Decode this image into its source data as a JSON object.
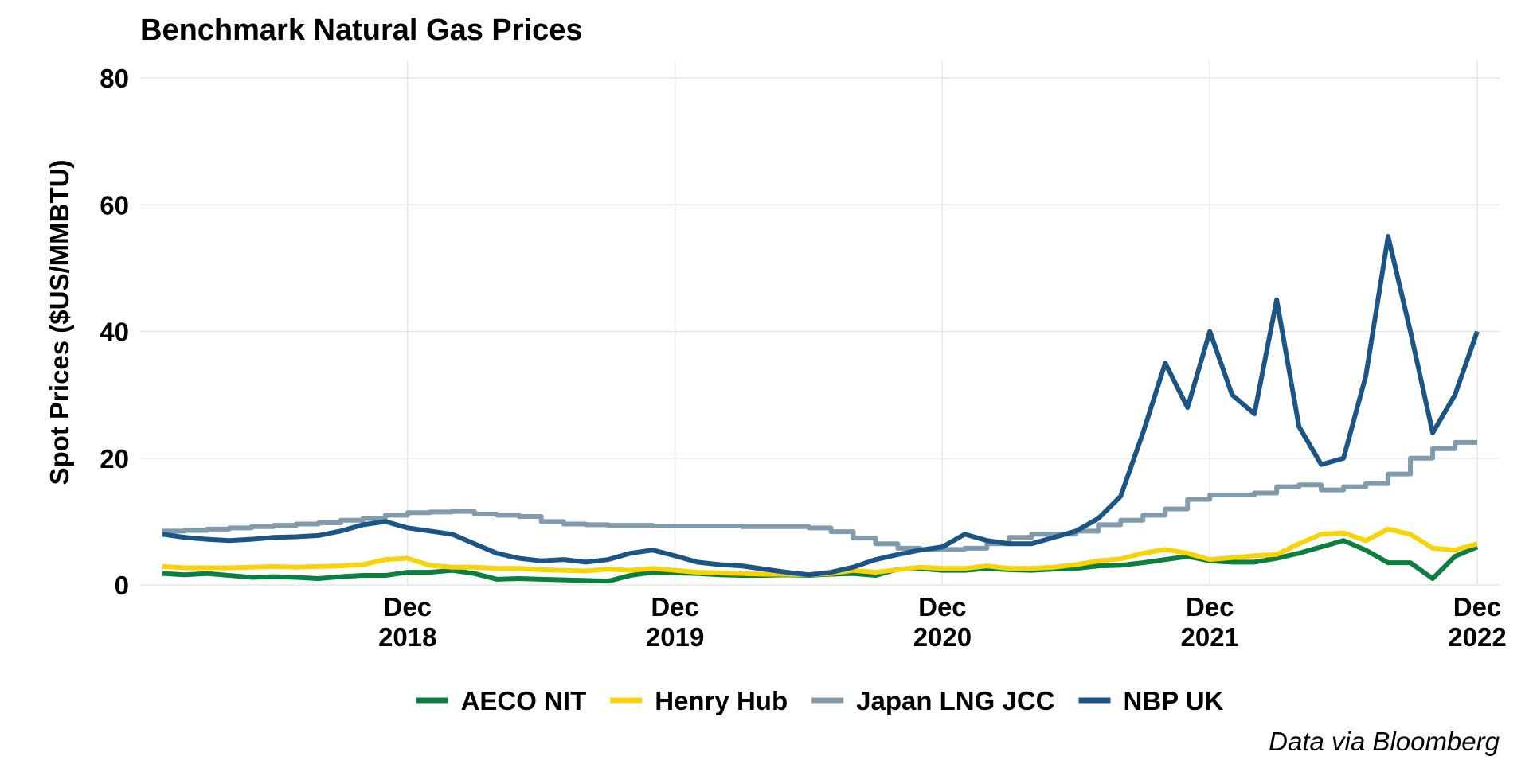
{
  "chart_data": {
    "type": "line",
    "title": "Benchmark Natural Gas Prices",
    "y_label": "Spot Prices ($US/MMBTU)",
    "caption": "Data via Bloomberg",
    "grid": true,
    "legend": "bottom",
    "x": [
      "2018-01",
      "2018-02",
      "2018-03",
      "2018-04",
      "2018-05",
      "2018-06",
      "2018-07",
      "2018-08",
      "2018-09",
      "2018-10",
      "2018-11",
      "2018-12",
      "2019-01",
      "2019-02",
      "2019-03",
      "2019-04",
      "2019-05",
      "2019-06",
      "2019-07",
      "2019-08",
      "2019-09",
      "2019-10",
      "2019-11",
      "2019-12",
      "2020-01",
      "2020-02",
      "2020-03",
      "2020-04",
      "2020-05",
      "2020-06",
      "2020-07",
      "2020-08",
      "2020-09",
      "2020-10",
      "2020-11",
      "2020-12",
      "2021-01",
      "2021-02",
      "2021-03",
      "2021-04",
      "2021-05",
      "2021-06",
      "2021-07",
      "2021-08",
      "2021-09",
      "2021-10",
      "2021-11",
      "2021-12",
      "2022-01",
      "2022-02",
      "2022-03",
      "2022-04",
      "2022-05",
      "2022-06",
      "2022-07",
      "2022-08",
      "2022-09",
      "2022-10",
      "2022-11",
      "2022-12"
    ],
    "xlim": [
      "2017-12",
      "2023-01"
    ],
    "xticks": [
      {
        "value": "2018-12",
        "label": "Dec\n2018"
      },
      {
        "value": "2019-12",
        "label": "Dec\n2019"
      },
      {
        "value": "2020-12",
        "label": "Dec\n2020"
      },
      {
        "value": "2021-12",
        "label": "Dec\n2021"
      },
      {
        "value": "2022-12",
        "label": "Dec\n2022"
      }
    ],
    "ylim": [
      0,
      80
    ],
    "yticks": [
      0,
      20,
      40,
      60,
      80
    ],
    "series": [
      {
        "name": "AECO NIT",
        "color": "#0b7f3f",
        "values": [
          1.8,
          1.6,
          1.8,
          1.5,
          1.2,
          1.3,
          1.2,
          1.0,
          1.3,
          1.5,
          1.5,
          2.0,
          2.0,
          2.3,
          1.8,
          0.9,
          1.0,
          0.9,
          0.8,
          0.7,
          0.6,
          1.5,
          2.0,
          1.9,
          1.8,
          1.6,
          1.5,
          1.5,
          1.6,
          1.5,
          1.7,
          1.8,
          1.5,
          2.5,
          2.6,
          2.3,
          2.3,
          2.6,
          2.4,
          2.3,
          2.5,
          2.6,
          3.0,
          3.1,
          3.5,
          4.0,
          4.5,
          3.8,
          3.6,
          3.6,
          4.2,
          5.0,
          6.0,
          7.0,
          5.5,
          3.5,
          3.5,
          1.0,
          4.5,
          6.0
        ]
      },
      {
        "name": "Henry Hub",
        "color": "#f7d308",
        "values": [
          2.9,
          2.7,
          2.7,
          2.7,
          2.8,
          2.9,
          2.8,
          2.9,
          3.0,
          3.2,
          4.0,
          4.2,
          3.1,
          2.8,
          2.8,
          2.6,
          2.6,
          2.4,
          2.3,
          2.2,
          2.5,
          2.3,
          2.6,
          2.3,
          2.0,
          1.9,
          1.8,
          1.7,
          1.7,
          1.6,
          1.8,
          2.3,
          2.0,
          2.4,
          2.8,
          2.6,
          2.6,
          3.0,
          2.6,
          2.6,
          2.8,
          3.2,
          3.8,
          4.1,
          5.0,
          5.6,
          5.0,
          4.0,
          4.3,
          4.6,
          4.8,
          6.5,
          8.0,
          8.2,
          7.0,
          8.8,
          8.0,
          5.8,
          5.5,
          6.5
        ]
      },
      {
        "name": "Japan LNG JCC",
        "color": "#7f9bac",
        "line_shape": "hv",
        "values": [
          8.5,
          8.6,
          8.8,
          9.0,
          9.2,
          9.4,
          9.6,
          9.8,
          10.2,
          10.5,
          11.0,
          11.4,
          11.5,
          11.6,
          11.2,
          11.0,
          10.8,
          10.0,
          9.6,
          9.5,
          9.4,
          9.4,
          9.3,
          9.3,
          9.3,
          9.3,
          9.2,
          9.2,
          9.2,
          9.0,
          8.4,
          7.4,
          6.5,
          5.8,
          5.6,
          5.6,
          5.8,
          6.5,
          7.5,
          8.0,
          8.0,
          8.5,
          9.5,
          10.2,
          11.0,
          12.0,
          13.5,
          14.2,
          14.2,
          14.5,
          15.5,
          15.8,
          15.0,
          15.5,
          16.0,
          17.5,
          20.0,
          21.5,
          22.5,
          22.5
        ]
      },
      {
        "name": "NBP UK",
        "color": "#1b5586",
        "values": [
          8.0,
          7.5,
          7.2,
          7.0,
          7.2,
          7.5,
          7.6,
          7.8,
          8.5,
          9.5,
          10.0,
          9.0,
          8.5,
          8.0,
          6.5,
          5.0,
          4.2,
          3.8,
          4.0,
          3.6,
          4.0,
          5.0,
          5.5,
          4.6,
          3.6,
          3.2,
          3.0,
          2.5,
          2.0,
          1.6,
          2.0,
          2.8,
          4.0,
          4.8,
          5.5,
          6.0,
          8.0,
          7.0,
          6.5,
          6.5,
          7.5,
          8.5,
          10.5,
          14.0,
          24.0,
          35.0,
          28.0,
          40.0,
          30.0,
          27.0,
          45.0,
          25.0,
          19.0,
          20.0,
          33.0,
          55.0,
          40.0,
          24.0,
          30.0,
          40.0
        ]
      }
    ]
  }
}
